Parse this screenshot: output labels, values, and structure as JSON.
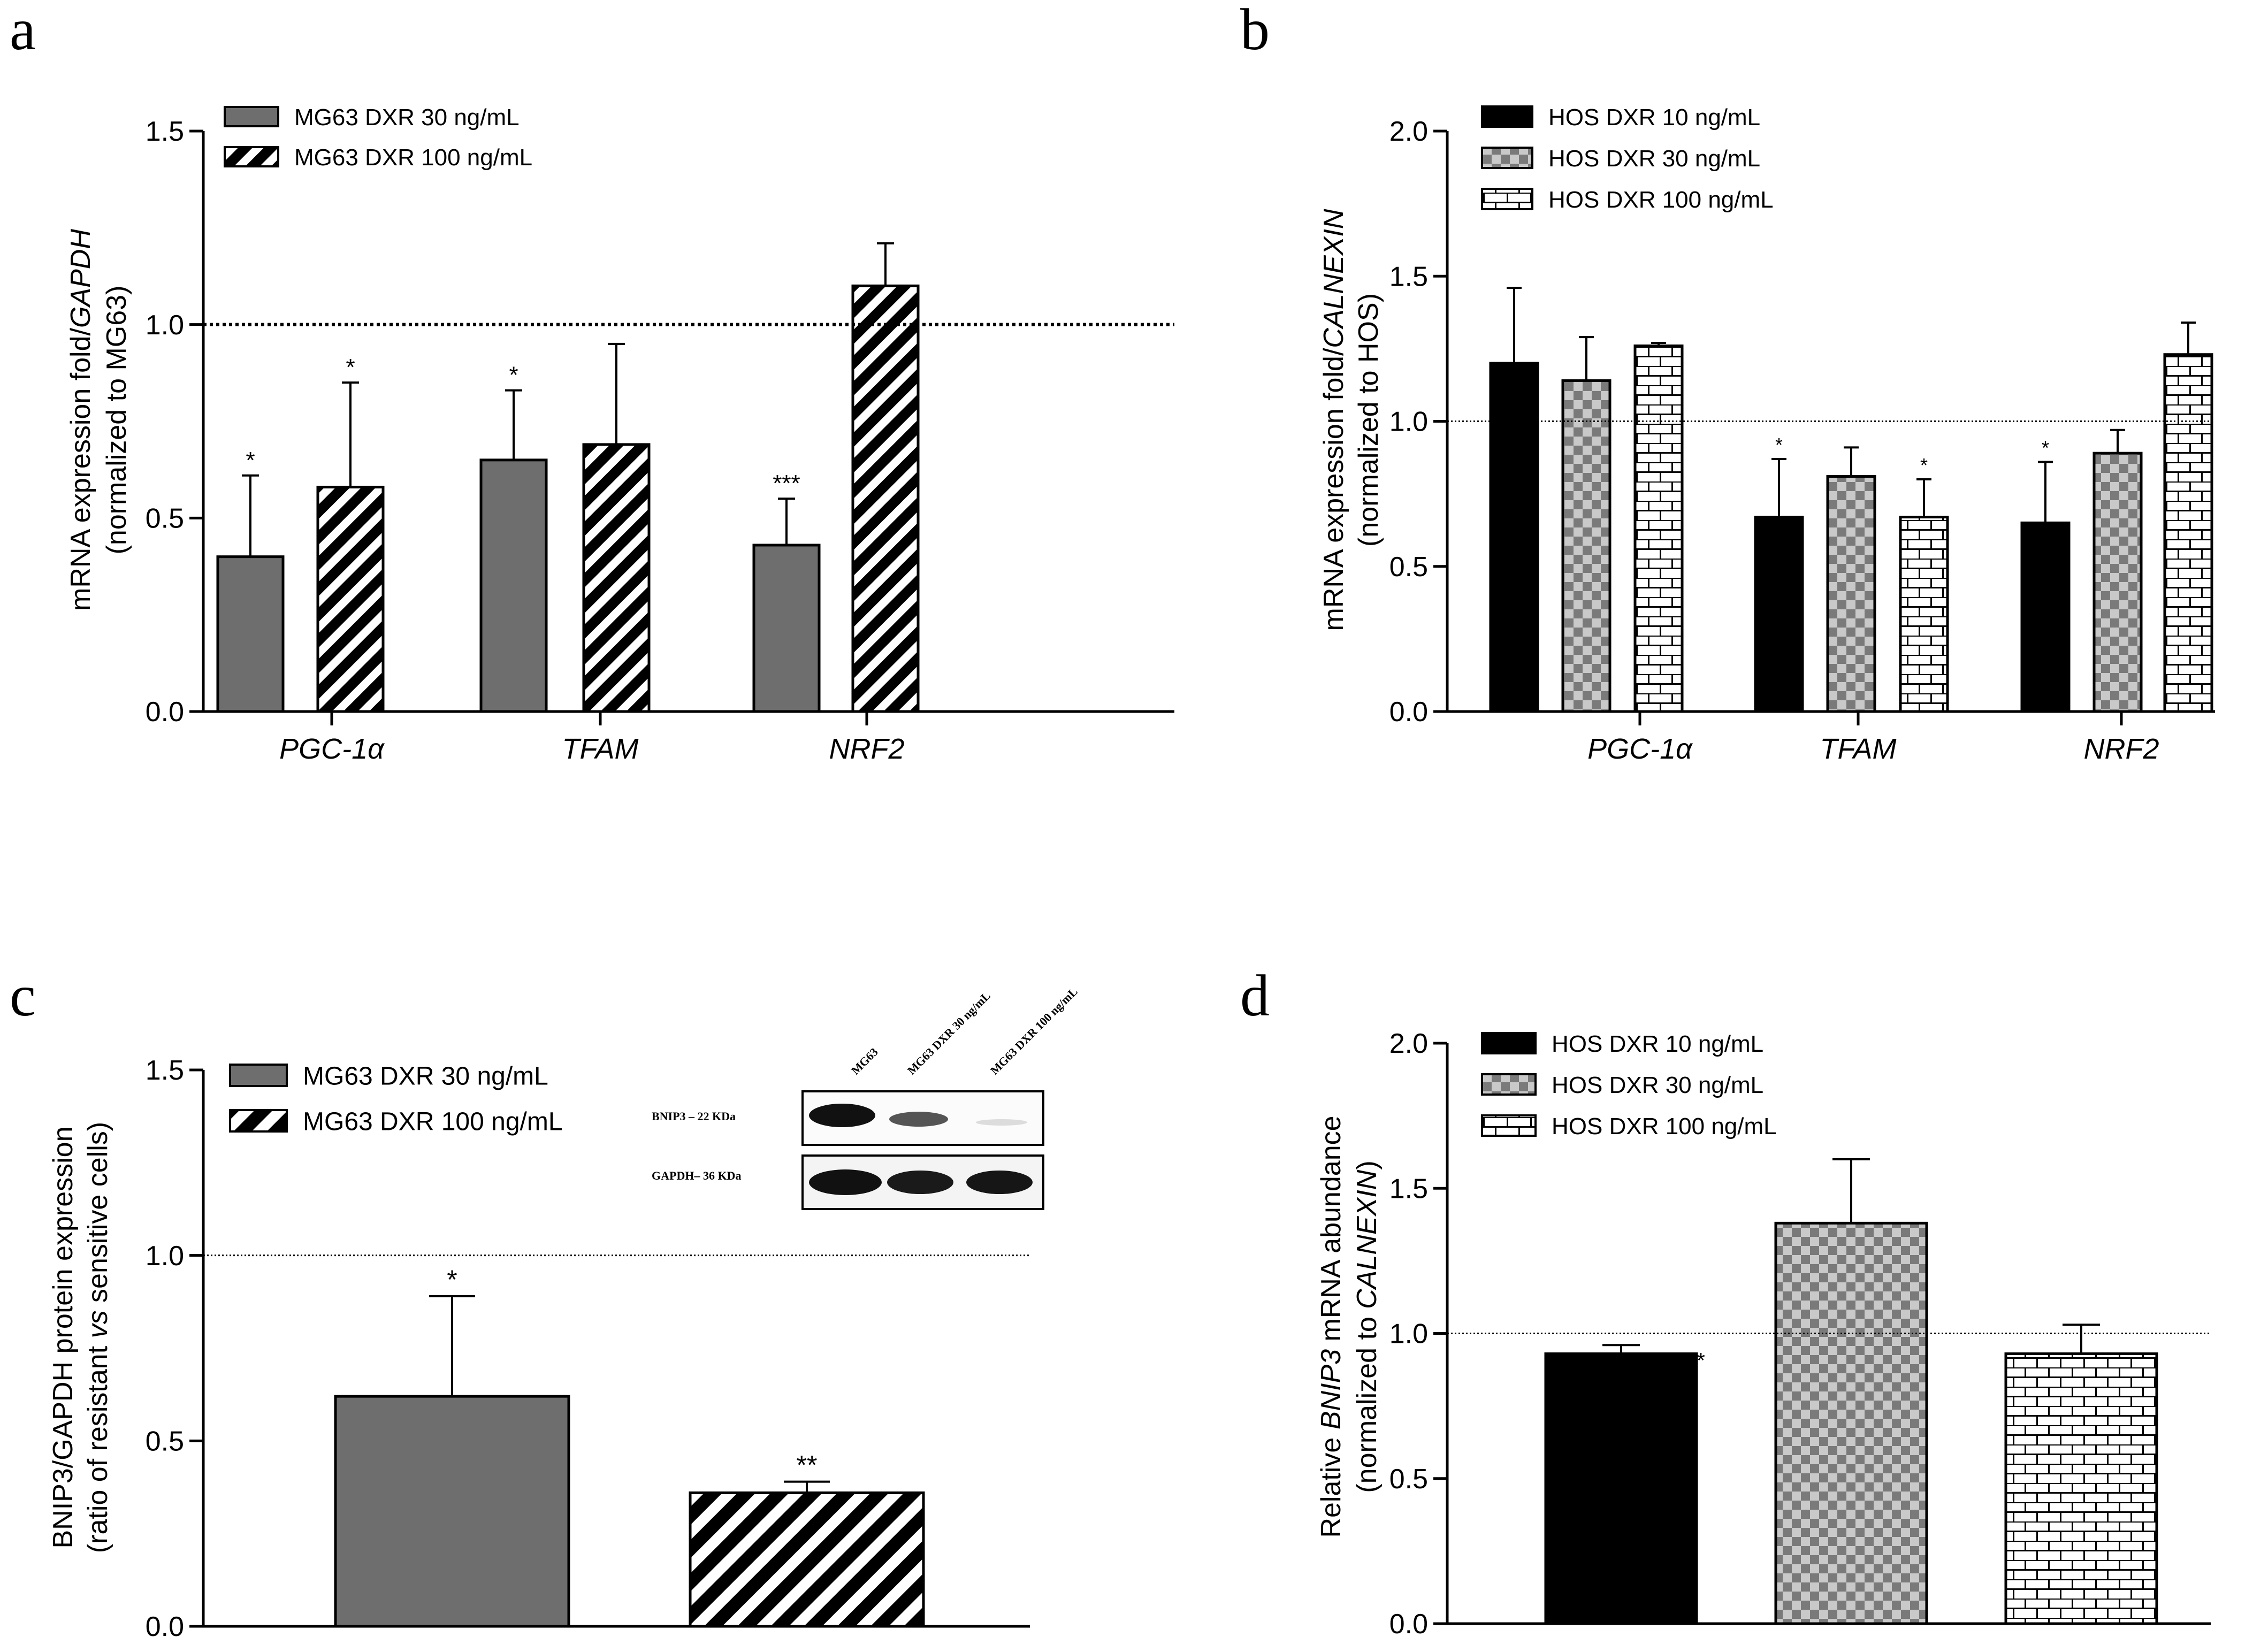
{
  "chart_data": [
    {
      "panel": "a",
      "type": "bar",
      "title": "",
      "ylabel": "mRNA expression fold/GAPDH",
      "ylabel_italic_part": "GAPDH",
      "ylabel_line2": "(normalized to MG63)",
      "xlabel": "",
      "ylim": [
        0,
        1.5
      ],
      "yticks": [
        "0.0",
        "0.5",
        "1.0",
        "1.5"
      ],
      "reference_line": 1.0,
      "categories": [
        "PGC-1α",
        "TFAM",
        "NRF2"
      ],
      "series": [
        {
          "name": "MG63 DXR 30 ng/mL",
          "pattern": "grey",
          "values": [
            0.4,
            0.65,
            0.43
          ],
          "errors": [
            0.21,
            0.18,
            0.12
          ],
          "significance": [
            "*",
            "*",
            "***"
          ]
        },
        {
          "name": "MG63 DXR 100 ng/mL",
          "pattern": "stripes",
          "values": [
            0.58,
            0.69,
            1.1
          ],
          "errors": [
            0.27,
            0.26,
            0.11
          ],
          "significance": [
            "*",
            "",
            ""
          ]
        }
      ]
    },
    {
      "panel": "b",
      "type": "bar",
      "title": "",
      "ylabel": "mRNA expression fold/CALNEXIN",
      "ylabel_italic_part": "CALNEXIN",
      "ylabel_line2": "(normalized to HOS)",
      "xlabel": "",
      "ylim": [
        0,
        2.0
      ],
      "yticks": [
        "0.0",
        "0.5",
        "1.0",
        "1.5",
        "2.0"
      ],
      "reference_line": 1.0,
      "categories": [
        "PGC-1α",
        "TFAM",
        "NRF2"
      ],
      "series": [
        {
          "name": "HOS DXR 10 ng/mL",
          "pattern": "black",
          "values": [
            1.2,
            0.67,
            0.65
          ],
          "errors": [
            0.26,
            0.2,
            0.21
          ],
          "significance": [
            "",
            "*",
            "*"
          ]
        },
        {
          "name": "HOS DXR 30 ng/mL",
          "pattern": "checker",
          "values": [
            1.14,
            0.81,
            0.89
          ],
          "errors": [
            0.15,
            0.1,
            0.08
          ],
          "significance": [
            "",
            "",
            ""
          ]
        },
        {
          "name": "HOS DXR 100 ng/mL",
          "pattern": "brick",
          "values": [
            1.26,
            0.67,
            1.23
          ],
          "errors": [
            0.01,
            0.13,
            0.11
          ],
          "significance": [
            "",
            "*",
            ""
          ]
        }
      ]
    },
    {
      "panel": "c",
      "type": "bar",
      "title": "",
      "ylabel": "BNIP3/GAPDH protein expression",
      "ylabel_line2": "(ratio of resistant vs sensitive cells)",
      "ylabel_italic_part": "vs",
      "xlabel": "",
      "ylim": [
        0,
        1.5
      ],
      "yticks": [
        "0.0",
        "0.5",
        "1.0",
        "1.5"
      ],
      "reference_line": 1.0,
      "categories": [
        ""
      ],
      "series": [
        {
          "name": "MG63 DXR 30 ng/mL",
          "pattern": "grey",
          "values": [
            0.62
          ],
          "errors": [
            0.27
          ],
          "significance": [
            "*"
          ]
        },
        {
          "name": "MG63 DXR 100 ng/mL",
          "pattern": "stripes",
          "values": [
            0.36
          ],
          "errors": [
            0.03
          ],
          "significance": [
            "**"
          ]
        }
      ],
      "inset_blot": {
        "lanes": [
          "MG63",
          "MG63 DXR 30 ng/mL",
          "MG63 DXR 100 ng/mL"
        ],
        "rows": [
          "BNIP3 – 22 KDa",
          "GAPDH– 36 KDa"
        ]
      }
    },
    {
      "panel": "d",
      "type": "bar",
      "title": "",
      "ylabel": "Relative BNIP3 mRNA abundance",
      "ylabel_italic_part": "BNIP3",
      "ylabel_line2": "(normalized to CALNEXIN)",
      "xlabel": "",
      "ylim": [
        0,
        2.0
      ],
      "yticks": [
        "0.0",
        "0.5",
        "1.0",
        "1.5",
        "2.0"
      ],
      "reference_line": 1.0,
      "categories": [
        ""
      ],
      "series": [
        {
          "name": "HOS DXR 10 ng/mL",
          "pattern": "black",
          "values": [
            0.93
          ],
          "errors": [
            0.03
          ],
          "significance": [
            "*"
          ]
        },
        {
          "name": "HOS DXR 30 ng/mL",
          "pattern": "checker",
          "values": [
            1.38
          ],
          "errors": [
            0.22
          ],
          "significance": [
            ""
          ]
        },
        {
          "name": "HOS DXR 100 ng/mL",
          "pattern": "brick",
          "values": [
            0.93
          ],
          "errors": [
            0.1
          ],
          "significance": [
            ""
          ]
        }
      ]
    }
  ]
}
